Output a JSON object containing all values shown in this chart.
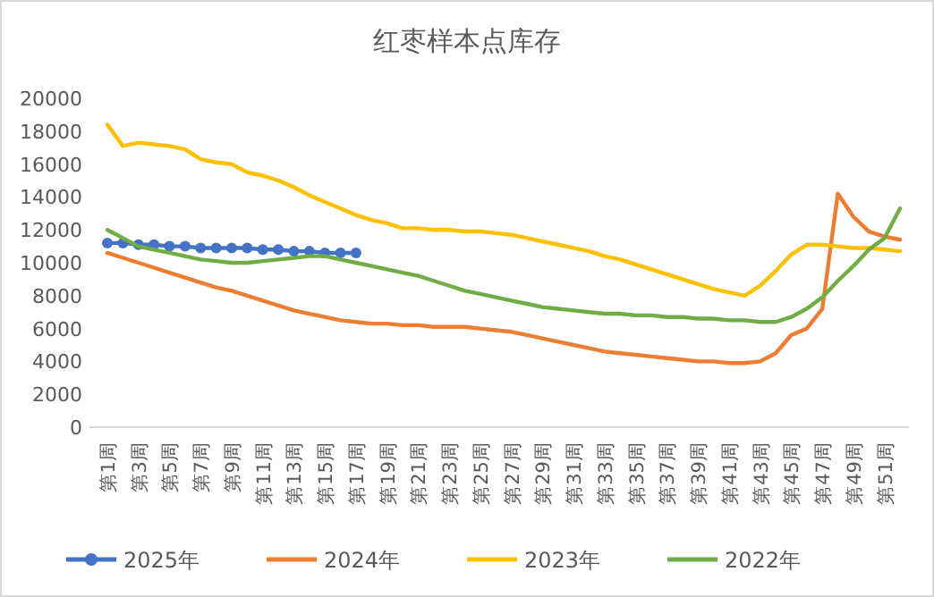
{
  "chart_data": {
    "type": "line",
    "title": "红枣样本点库存",
    "categories": [
      "第1周",
      null,
      "第3周",
      null,
      "第5周",
      null,
      "第7周",
      null,
      "第9周",
      null,
      "第11周",
      null,
      "第13周",
      null,
      "第15周",
      null,
      "第17周",
      null,
      "第19周",
      null,
      "第21周",
      null,
      "第23周",
      null,
      "第25周",
      null,
      "第27周",
      null,
      "第29周",
      null,
      "第31周",
      null,
      "第33周",
      null,
      "第35周",
      null,
      "第37周",
      null,
      "第39周",
      null,
      "第41周",
      null,
      "第43周",
      null,
      "第45周",
      null,
      "第47周",
      null,
      "第49周",
      null,
      "第51周",
      null
    ],
    "series": [
      {
        "name": "2025年",
        "color": "#4472c4",
        "marker": "circle",
        "values": [
          11200,
          11200,
          11100,
          11100,
          11000,
          11000,
          10900,
          10900,
          10900,
          10900,
          10800,
          10800,
          10700,
          10700,
          10600,
          10600,
          10600,
          null,
          null,
          null,
          null,
          null,
          null,
          null,
          null,
          null,
          null,
          null,
          null,
          null,
          null,
          null,
          null,
          null,
          null,
          null,
          null,
          null,
          null,
          null,
          null,
          null,
          null,
          null,
          null,
          null,
          null,
          null,
          null,
          null,
          null,
          null
        ]
      },
      {
        "name": "2024年",
        "color": "#ed7d31",
        "marker": "none",
        "values": [
          10600,
          10300,
          10000,
          9700,
          9400,
          9100,
          8800,
          8500,
          8300,
          8000,
          7700,
          7400,
          7100,
          6900,
          6700,
          6500,
          6400,
          6300,
          6300,
          6200,
          6200,
          6100,
          6100,
          6100,
          6000,
          5900,
          5800,
          5600,
          5400,
          5200,
          5000,
          4800,
          4600,
          4500,
          4400,
          4300,
          4200,
          4100,
          4000,
          4000,
          3900,
          3900,
          4000,
          4500,
          5600,
          6000,
          7200,
          14200,
          12800,
          11900,
          11600,
          11400
        ]
      },
      {
        "name": "2023年",
        "color": "#ffc000",
        "marker": "none",
        "values": [
          18400,
          17100,
          17300,
          17200,
          17100,
          16900,
          16300,
          16100,
          16000,
          15500,
          15300,
          15000,
          14600,
          14100,
          13700,
          13300,
          12900,
          12600,
          12400,
          12100,
          12100,
          12000,
          12000,
          11900,
          11900,
          11800,
          11700,
          11500,
          11300,
          11100,
          10900,
          10700,
          10400,
          10200,
          9900,
          9600,
          9300,
          9000,
          8700,
          8400,
          8200,
          8000,
          8600,
          9500,
          10500,
          11100,
          11100,
          11000,
          10900,
          10900,
          10800,
          10700
        ]
      },
      {
        "name": "2022年",
        "color": "#70ad47",
        "marker": "none",
        "values": [
          12000,
          11500,
          11000,
          10800,
          10600,
          10400,
          10200,
          10100,
          10000,
          10000,
          10100,
          10200,
          10300,
          10400,
          10400,
          10200,
          10000,
          9800,
          9600,
          9400,
          9200,
          8900,
          8600,
          8300,
          8100,
          7900,
          7700,
          7500,
          7300,
          7200,
          7100,
          7000,
          6900,
          6900,
          6800,
          6800,
          6700,
          6700,
          6600,
          6600,
          6500,
          6500,
          6400,
          6400,
          6700,
          7200,
          7900,
          8900,
          9800,
          10800,
          11500,
          13300
        ]
      }
    ],
    "ylim": [
      0,
      20000
    ],
    "yticks": [
      0,
      2000,
      4000,
      6000,
      8000,
      10000,
      12000,
      14000,
      16000,
      18000,
      20000
    ],
    "legend": "bottom"
  }
}
